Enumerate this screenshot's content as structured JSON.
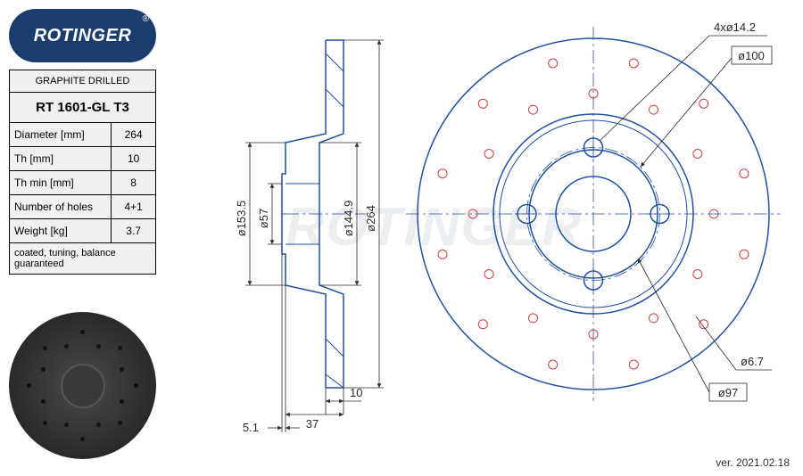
{
  "logo": {
    "brand": "ROTINGER",
    "registered": "®"
  },
  "spec": {
    "type": "GRAPHITE DRILLED",
    "part_number": "RT 1601-GL T3",
    "rows": [
      {
        "label": "Diameter [mm]",
        "value": "264"
      },
      {
        "label": "Th [mm]",
        "value": "10"
      },
      {
        "label": "Th min [mm]",
        "value": "8"
      },
      {
        "label": "Number of holes",
        "value": "4+1"
      },
      {
        "label": "Weight [kg]",
        "value": "3.7"
      }
    ],
    "footer": "coated, tuning, balance guaranteed"
  },
  "drawing": {
    "profile": {
      "dims": {
        "d1": "ø153.5",
        "d2": "ø57",
        "d3": "ø144.9",
        "d4": "ø264",
        "t1": "5.1",
        "t2": "37",
        "t3": "10"
      }
    },
    "face": {
      "callout_holes": "4xø14.2",
      "callout_pcd": "ø100",
      "callout_small": "ø6.7",
      "callout_hub": "ø97",
      "outer_d": 264,
      "hub_d": 97,
      "pcd": 100,
      "bolt_hole_d": 14.2,
      "drill_hole_d": 6.7
    },
    "colors": {
      "blueprint": "#2050a0",
      "dim": "#2a2a2a",
      "drill": "#d04040",
      "bg": "#ffffff"
    }
  },
  "version": "ver. 2021.02.18",
  "watermark": "ROTINGER"
}
